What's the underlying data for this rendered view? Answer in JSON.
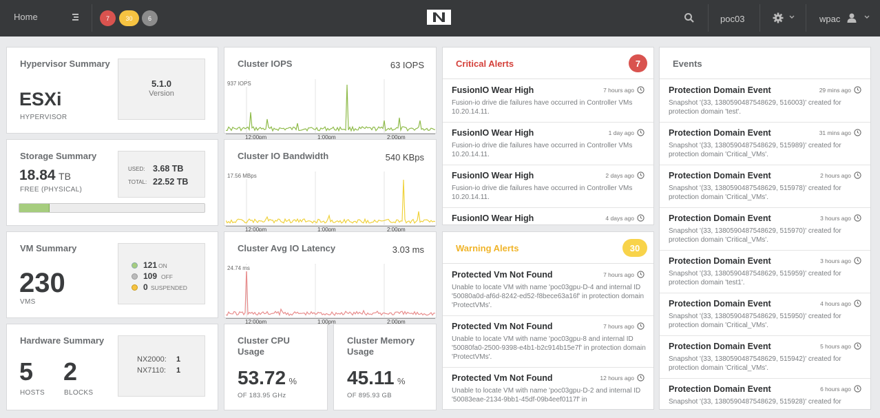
{
  "topbar": {
    "home_label": "Home",
    "badges": [
      {
        "value": "7",
        "color": "#d9534f"
      },
      {
        "value": "30",
        "color": "#f6c342"
      },
      {
        "value": "6",
        "color": "#8c8c8c"
      }
    ],
    "cluster_name": "poc03",
    "user_name": "wpac"
  },
  "hypervisor": {
    "title": "Hypervisor Summary",
    "type": "ESXi",
    "type_label": "HYPERVISOR",
    "version": "5.1.0",
    "version_label": "Version"
  },
  "storage": {
    "title": "Storage Summary",
    "free_value": "18.84",
    "free_unit": "TB",
    "free_label": "FREE (PHYSICAL)",
    "used_label": "USED:",
    "used_value": "3.68 TB",
    "total_label": "TOTAL:",
    "total_value": "22.52 TB",
    "used_fraction": 0.163
  },
  "vm": {
    "title": "VM Summary",
    "count": "230",
    "count_label": "VMS",
    "on_value": "121",
    "on_label": "ON",
    "off_value": "109",
    "off_label": "OFF",
    "suspended_value": "0",
    "suspended_label": "SUSPENDED"
  },
  "hardware": {
    "title": "Hardware Summary",
    "hosts_value": "5",
    "hosts_label": "HOSTS",
    "blocks_value": "2",
    "blocks_label": "BLOCKS",
    "models": [
      {
        "name": "NX2000:",
        "count": "1"
      },
      {
        "name": "NX7110:",
        "count": "1"
      }
    ]
  },
  "iops": {
    "title": "Cluster IOPS",
    "value": "63 IOPS",
    "max_label": "937 IOPS",
    "ticks": [
      "12:00pm",
      "1:00pm",
      "2:00pm"
    ],
    "color": "#8fbb4a"
  },
  "bandwidth": {
    "title": "Cluster IO Bandwidth",
    "value": "540 KBps",
    "max_label": "17.56 MBps",
    "ticks": [
      "12:00pm",
      "1:00pm",
      "2:00pm"
    ],
    "color": "#f0d23c"
  },
  "latency": {
    "title": "Cluster Avg IO Latency",
    "value": "3.03 ms",
    "max_label": "24.74 ms",
    "ticks": [
      "12:00pm",
      "1:00pm",
      "2:00pm"
    ],
    "color": "#e88d8d"
  },
  "cpu": {
    "title_line1": "Cluster CPU",
    "title_line2": "Usage",
    "value": "53.72",
    "unit": "%",
    "sub": "OF 183.95 GHz"
  },
  "memory": {
    "title_line1": "Cluster Memory",
    "title_line2": "Usage",
    "value": "45.11",
    "unit": "%",
    "sub": "OF 895.93 GB"
  },
  "critical": {
    "title": "Critical Alerts",
    "count": "7",
    "items": [
      {
        "title": "FusionIO Wear High",
        "time": "7 hours ago",
        "desc": "Fusion-io drive die failures have occurred in Controller VMs 10.20.14.11."
      },
      {
        "title": "FusionIO Wear High",
        "time": "1 day ago",
        "desc": "Fusion-io drive die failures have occurred in Controller VMs 10.20.14.11."
      },
      {
        "title": "FusionIO Wear High",
        "time": "2 days ago",
        "desc": "Fusion-io drive die failures have occurred in Controller VMs 10.20.14.11."
      },
      {
        "title": "FusionIO Wear High",
        "time": "4 days ago",
        "desc": ""
      }
    ]
  },
  "warning": {
    "title": "Warning Alerts",
    "count": "30",
    "items": [
      {
        "title": "Protected Vm Not Found",
        "time": "7 hours ago",
        "desc": "Unable to locate VM with name 'poc03gpu-D-4 and internal ID '50080a0d-af6d-8242-ed52-f8bece63a16f' in protection domain 'ProtectVMs'."
      },
      {
        "title": "Protected Vm Not Found",
        "time": "7 hours ago",
        "desc": "Unable to locate VM with name 'poc03gpu-8 and internal ID '50080fa0-2500-9398-e4b1-b2c914b15e7f' in protection domain 'ProtectVMs'."
      },
      {
        "title": "Protected Vm Not Found",
        "time": "12 hours ago",
        "desc": "Unable to locate VM with name 'poc03gpu-D-2 and internal ID '50083eae-2134-9bb1-45df-09b4eef0117f' in"
      }
    ]
  },
  "events": {
    "title": "Events",
    "items": [
      {
        "title": "Protection Domain Event",
        "time": "29 mins ago",
        "desc": "Snapshot '(33, 1380590487548629, 516003)' created for protection domain 'test'."
      },
      {
        "title": "Protection Domain Event",
        "time": "31 mins ago",
        "desc": "Snapshot '(33, 1380590487548629, 515989)' created for protection domain 'Critical_VMs'."
      },
      {
        "title": "Protection Domain Event",
        "time": "2 hours ago",
        "desc": "Snapshot '(33, 1380590487548629, 515978)' created for protection domain 'Critical_VMs'."
      },
      {
        "title": "Protection Domain Event",
        "time": "3 hours ago",
        "desc": "Snapshot '(33, 1380590487548629, 515970)' created for protection domain 'Critical_VMs'."
      },
      {
        "title": "Protection Domain Event",
        "time": "3 hours ago",
        "desc": "Snapshot '(33, 1380590487548629, 515959)' created for protection domain 'test1'."
      },
      {
        "title": "Protection Domain Event",
        "time": "4 hours ago",
        "desc": "Snapshot '(33, 1380590487548629, 515950)' created for protection domain 'Critical_VMs'."
      },
      {
        "title": "Protection Domain Event",
        "time": "5 hours ago",
        "desc": "Snapshot '(33, 1380590487548629, 515942)' created for protection domain 'Critical_VMs'."
      },
      {
        "title": "Protection Domain Event",
        "time": "6 hours ago",
        "desc": "Snapshot '(33, 1380590487548629, 515928)' created for"
      }
    ]
  }
}
